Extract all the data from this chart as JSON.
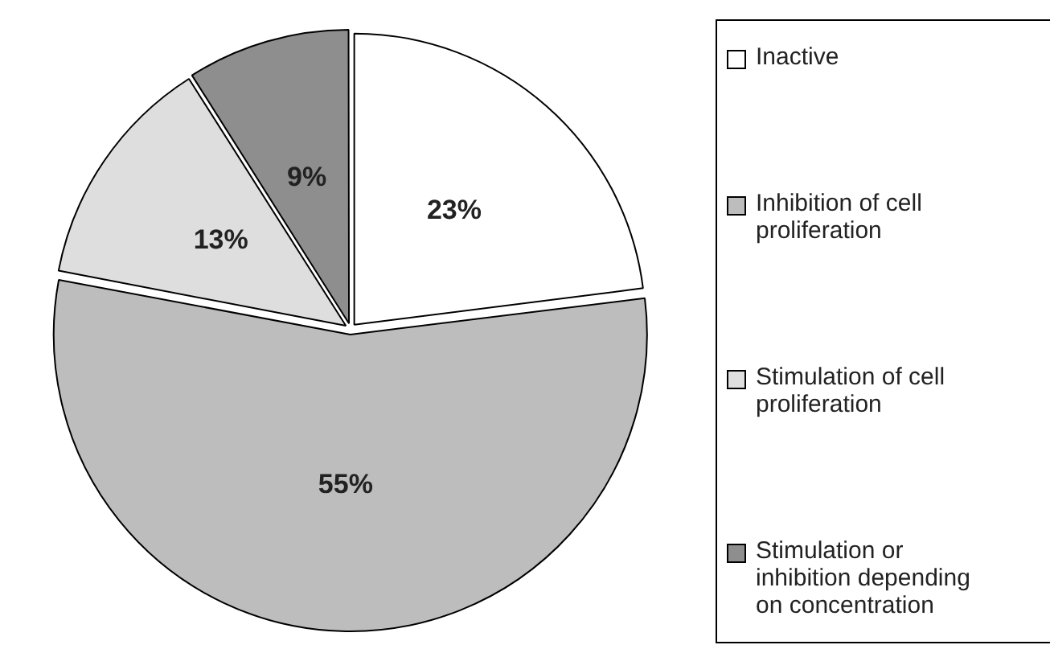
{
  "chart_data": {
    "type": "pie",
    "categories": [
      "Inactive",
      "Inhibition of cell proliferation",
      "Stimulation of cell proliferation",
      "Stimulation or inhibition depending on concentration"
    ],
    "values": [
      23,
      55,
      13,
      9
    ],
    "colors": [
      "#ffffff",
      "#bdbdbd",
      "#dedede",
      "#8e8e8e"
    ],
    "value_labels": [
      "23%",
      "55%",
      "13%",
      "9%"
    ],
    "legend": "right"
  }
}
